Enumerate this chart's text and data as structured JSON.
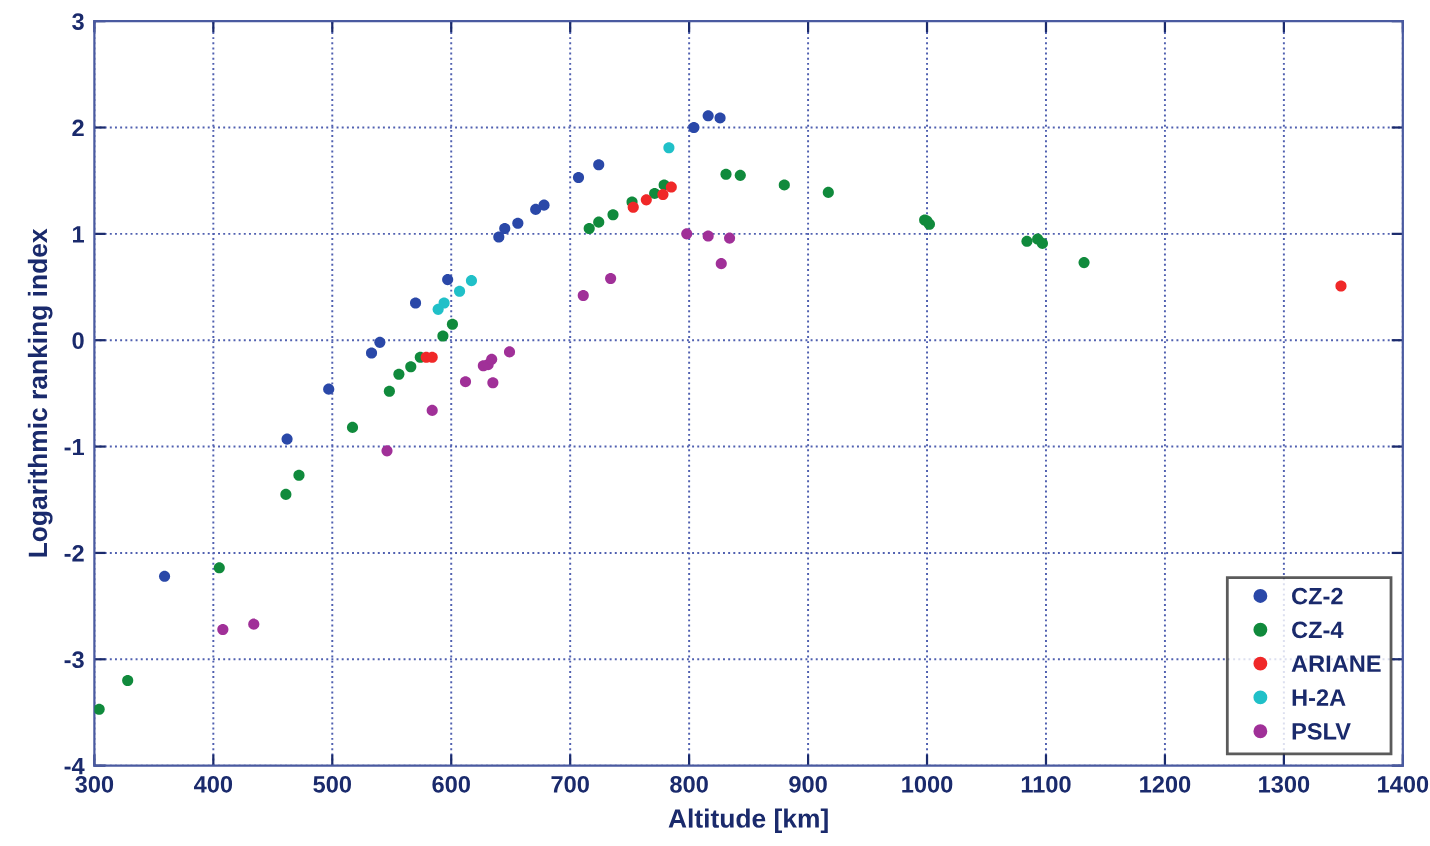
{
  "chart_data": {
    "type": "scatter",
    "xlabel": "Altitude [km]",
    "ylabel": "Logarithmic ranking index",
    "xlim": [
      300,
      1400
    ],
    "xticks": [
      300,
      400,
      500,
      600,
      700,
      800,
      900,
      1000,
      1100,
      1200,
      1300,
      1400
    ],
    "ylim": [
      -4,
      3
    ],
    "yticks": [
      -4,
      -3,
      -2,
      -1,
      0,
      1,
      2,
      3
    ],
    "grid": true,
    "legend": "bottom right",
    "marker": "circle",
    "series": [
      {
        "name": "CZ-2",
        "color": "#2a48a8",
        "x": [
          359,
          462,
          497,
          533,
          540,
          570,
          597,
          640,
          645,
          656,
          671,
          678,
          707,
          724,
          804,
          816,
          826
        ],
        "values": [
          -2.22,
          -0.93,
          -0.46,
          -0.12,
          -0.02,
          0.35,
          0.57,
          0.97,
          1.05,
          1.1,
          1.23,
          1.27,
          1.53,
          1.65,
          2.0,
          2.11,
          2.09
        ]
      },
      {
        "name": "CZ-4",
        "color": "#108a3c",
        "x": [
          304,
          328,
          405,
          461,
          472,
          517,
          548,
          556,
          566,
          574,
          593,
          601,
          716,
          724,
          736,
          752,
          771,
          779,
          831,
          843,
          880,
          917,
          998,
          1000,
          1002,
          1084,
          1093,
          1097,
          1132
        ],
        "values": [
          -3.47,
          -3.2,
          -2.14,
          -1.45,
          -1.27,
          -0.82,
          -0.48,
          -0.32,
          -0.25,
          -0.16,
          0.04,
          0.15,
          1.05,
          1.11,
          1.18,
          1.3,
          1.38,
          1.46,
          1.56,
          1.55,
          1.46,
          1.39,
          1.13,
          1.12,
          1.09,
          0.93,
          0.95,
          0.91,
          0.73
        ]
      },
      {
        "name": "ARIANE",
        "color": "#f02828",
        "x": [
          579,
          584,
          753,
          764,
          778,
          785,
          1348
        ],
        "values": [
          -0.16,
          -0.16,
          1.25,
          1.32,
          1.37,
          1.44,
          0.51
        ]
      },
      {
        "name": "H-2A",
        "color": "#20c0c8",
        "x": [
          589,
          594,
          607,
          617,
          783
        ],
        "values": [
          0.29,
          0.35,
          0.46,
          0.56,
          1.81
        ]
      },
      {
        "name": "PSLV",
        "color": "#a03098",
        "x": [
          408,
          434,
          546,
          584,
          612,
          627,
          631,
          634,
          635,
          649,
          711,
          734,
          798,
          816,
          827,
          834
        ],
        "values": [
          -2.72,
          -2.67,
          -1.04,
          -0.66,
          -0.39,
          -0.24,
          -0.23,
          -0.18,
          -0.4,
          -0.11,
          0.42,
          0.58,
          1.0,
          0.98,
          0.72,
          0.96
        ]
      }
    ]
  }
}
